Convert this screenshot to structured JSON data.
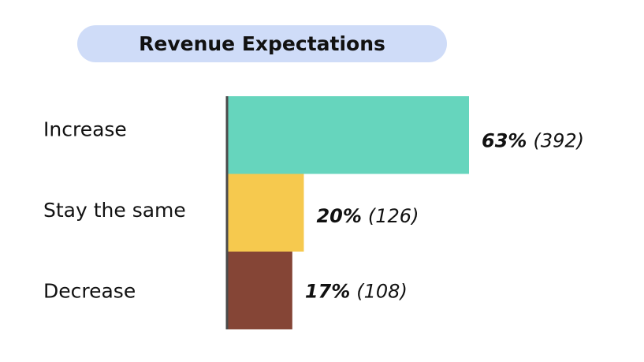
{
  "chart_data": {
    "type": "bar",
    "orientation": "horizontal",
    "title": "Revenue Expectations",
    "categories": [
      "Increase",
      "Stay the same",
      "Decrease"
    ],
    "values": [
      63,
      20,
      17
    ],
    "counts": [
      392,
      126,
      108
    ],
    "value_labels": [
      "63%",
      "20%",
      "17%"
    ],
    "count_labels": [
      "(392)",
      "(126)",
      "(108)"
    ],
    "colors": [
      "#66d5bd",
      "#f6c94e",
      "#854536"
    ],
    "xlim": [
      0,
      100
    ],
    "grid": false,
    "legend": "none"
  }
}
